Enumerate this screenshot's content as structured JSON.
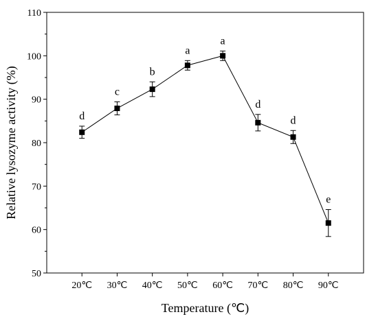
{
  "chart_data": {
    "type": "line",
    "title": "",
    "xlabel": "Temperature (℃)",
    "ylabel": "Relative lysozyme activity (%)",
    "categories": [
      "20℃",
      "30℃",
      "40℃",
      "50℃",
      "60℃",
      "70℃",
      "80℃",
      "90℃"
    ],
    "series": [
      {
        "values": [
          82.4,
          87.9,
          92.3,
          97.8,
          100.0,
          84.6,
          81.3,
          61.5
        ],
        "error": [
          1.4,
          1.5,
          1.7,
          1.1,
          1.1,
          1.9,
          1.5,
          3.1
        ],
        "significance": [
          "d",
          "c",
          "b",
          "a",
          "a",
          "d",
          "d",
          "e"
        ]
      }
    ],
    "ylim": [
      50,
      110
    ],
    "yticks": [
      50,
      60,
      70,
      80,
      90,
      100,
      110
    ],
    "grid": false,
    "legend": "none",
    "colors": {
      "line": "#000000",
      "marker": "#000000"
    }
  }
}
